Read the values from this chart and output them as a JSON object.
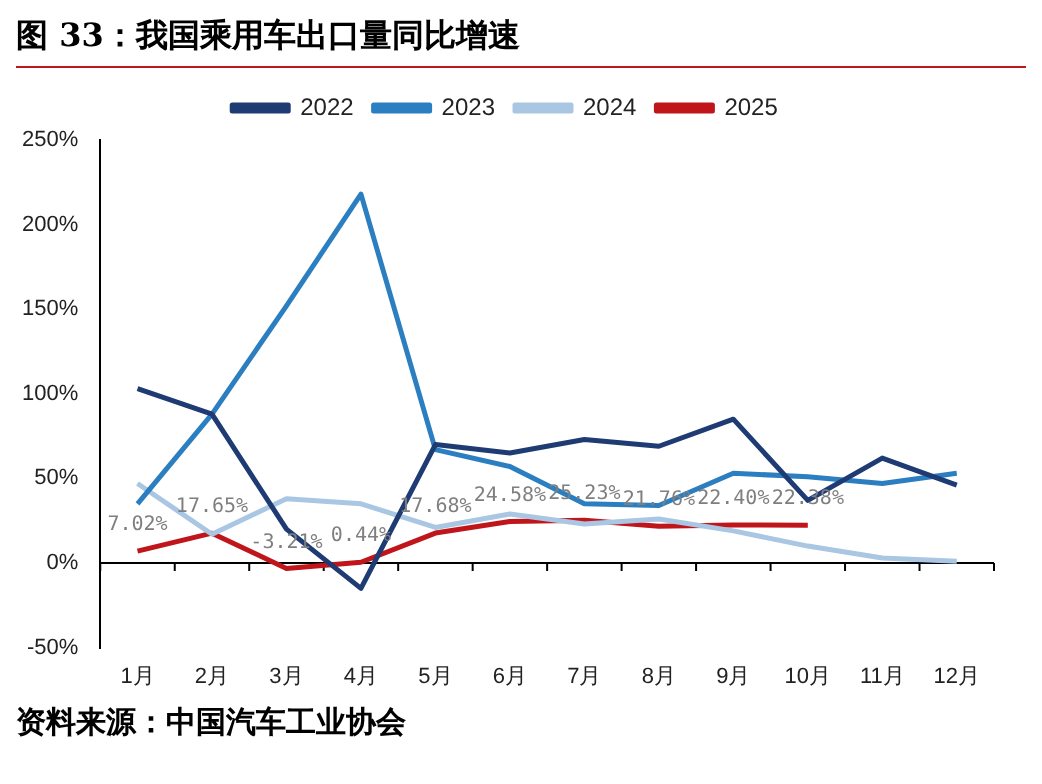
{
  "chart_data": {
    "type": "line",
    "title": "图 33：我国乘用车出口量同比增速",
    "annotations": [
      "资料来源：中国汽车工业协会"
    ],
    "categories": [
      "1月",
      "2月",
      "3月",
      "4月",
      "5月",
      "6月",
      "7月",
      "8月",
      "9月",
      "10月",
      "11月",
      "12月"
    ],
    "ylim": [
      -50,
      250
    ],
    "yticks": [
      {
        "value": -50,
        "label": "-50%"
      },
      {
        "value": 0,
        "label": "0%"
      },
      {
        "value": 50,
        "label": "50%"
      },
      {
        "value": 100,
        "label": "100%"
      },
      {
        "value": 150,
        "label": "150%"
      },
      {
        "value": 200,
        "label": "200%"
      },
      {
        "value": 250,
        "label": "250%"
      }
    ],
    "grid": false,
    "legend": "top",
    "ref_lines": [
      {
        "axis": "y",
        "value": 0,
        "color": "#000000"
      }
    ],
    "marker": "none",
    "line_style": "solid",
    "series": [
      {
        "name": "2022",
        "color": "#1f3b73",
        "values": [
          103,
          88,
          20,
          -15,
          70,
          65,
          73,
          69,
          85,
          37,
          62,
          46
        ]
      },
      {
        "name": "2023",
        "color": "#2b7fc1",
        "values": [
          35,
          88,
          152,
          218,
          67,
          57,
          35,
          34,
          53,
          51,
          47,
          53
        ]
      },
      {
        "name": "2024",
        "color": "#a9c6e3",
        "values": [
          47,
          17,
          38,
          35,
          21,
          29,
          23,
          26,
          19,
          10,
          3,
          1
        ]
      },
      {
        "name": "2025",
        "color": "#c0161b",
        "values": [
          7.02,
          17.65,
          -3.21,
          0.44,
          17.68,
          24.58,
          25.23,
          21.76,
          22.4,
          22.38,
          null,
          null
        ],
        "value_labels": [
          "7.02%",
          "17.65%",
          "-3.21%",
          "0.44%",
          "17.68%",
          "24.58%",
          "25.23%",
          "21.76%",
          "22.40%",
          "22.38%",
          null,
          null
        ]
      }
    ]
  }
}
